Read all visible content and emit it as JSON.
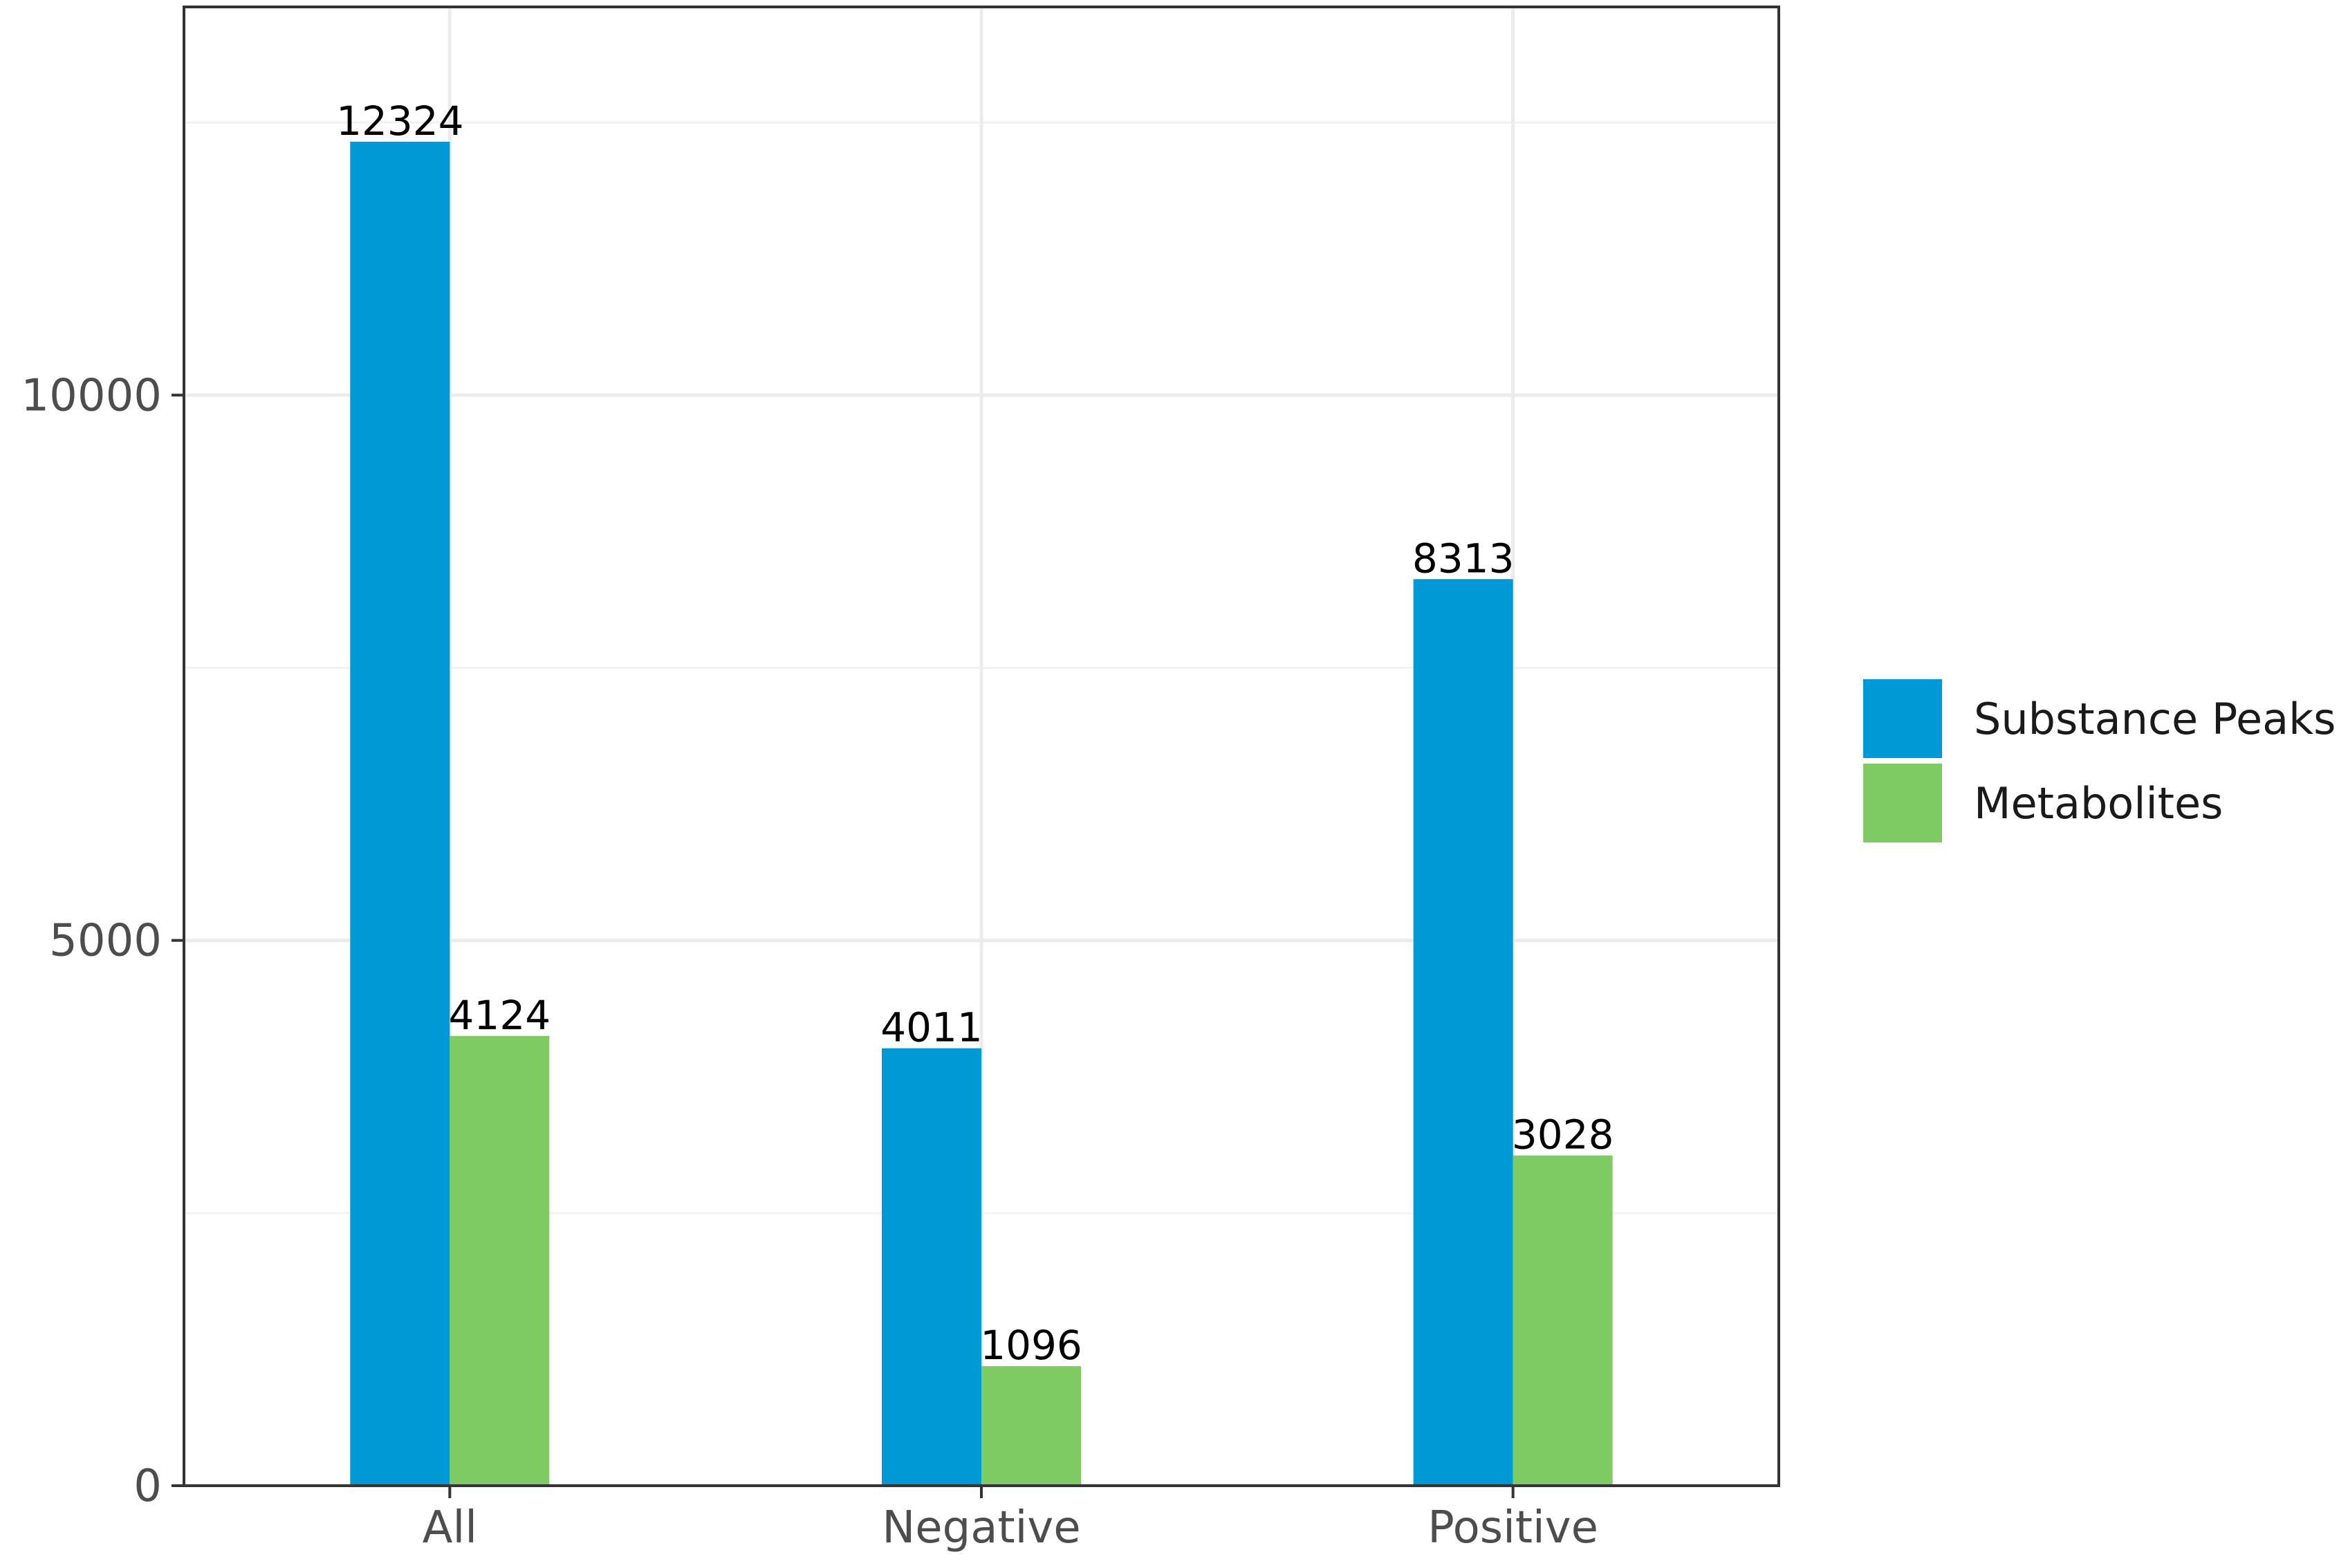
{
  "chart_data": {
    "type": "bar",
    "categories": [
      "All",
      "Negative",
      "Positive"
    ],
    "series": [
      {
        "name": "Substance Peaks",
        "values": [
          12324,
          4011,
          8313
        ],
        "color": "#0099D8"
      },
      {
        "name": "Metabolites",
        "values": [
          4124,
          1096,
          3028
        ],
        "color": "#7ECA63"
      }
    ],
    "data_labels": [
      [
        "12324",
        "4011",
        "8313"
      ],
      [
        "4124",
        "1096",
        "3028"
      ]
    ],
    "y_ticks": [
      0,
      5000,
      10000
    ],
    "y_tick_labels": [
      "0",
      "5000",
      "10000"
    ],
    "ylim": [
      0,
      13560
    ],
    "title": "",
    "xlabel": "",
    "ylabel": "",
    "grid": true,
    "legend_position": "right"
  }
}
